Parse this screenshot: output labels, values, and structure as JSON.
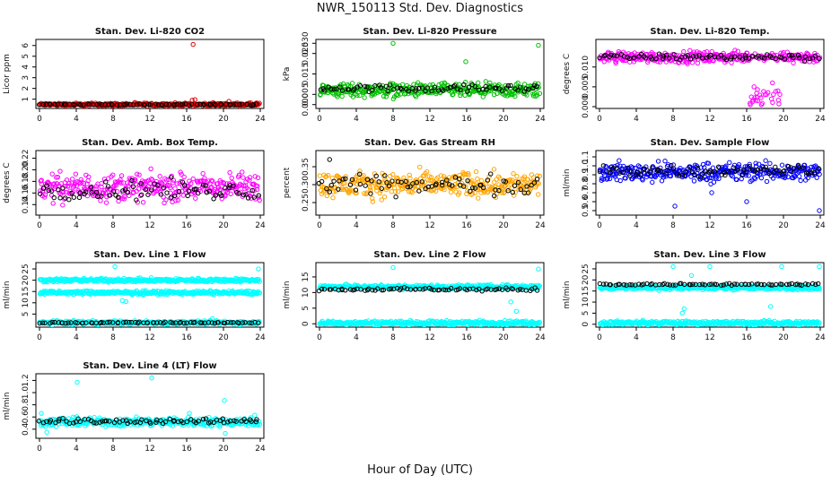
{
  "figure": {
    "title": "NWR_150113  Std. Dev. Diagnostics",
    "xlabel": "Hour of Day (UTC)"
  },
  "chart_data": [
    {
      "type": "scatter",
      "title": "Stan. Dev. Li-820 CO2",
      "ylabel": "Licor ppm",
      "xlim": [
        0,
        24
      ],
      "ylim": [
        0.3,
        6.4
      ],
      "xticks": [
        0,
        4,
        8,
        12,
        16,
        20,
        24
      ],
      "yticks": [
        1,
        2,
        3,
        4,
        5,
        6
      ],
      "series": [
        {
          "color": "#e00000",
          "base": 0.5,
          "noise": 0.12,
          "outliers": [
            [
              16.7,
              6.1
            ],
            [
              16.6,
              0.9
            ],
            [
              16.9,
              0.95
            ],
            [
              20.6,
              0.8
            ],
            [
              23.6,
              0.65
            ]
          ]
        },
        {
          "color": "#000000",
          "base": 0.5,
          "noise": 0.06,
          "sparse": true,
          "outliers": []
        }
      ]
    },
    {
      "type": "scatter",
      "title": "Stan. Dev. Li-820 Pressure",
      "ylabel": "kPa",
      "xlim": [
        0,
        24
      ],
      "ylim": [
        -0.001,
        0.031
      ],
      "xticks": [
        0,
        4,
        8,
        12,
        16,
        20,
        24
      ],
      "yticks": [
        0.0,
        0.005,
        0.015,
        0.025
      ],
      "ytick_labels": [
        "0.000",
        "0.005",
        "0.015",
        "0.025"
      ],
      "extra_ytick": {
        "value": 0.03,
        "label": "0.030"
      },
      "series": [
        {
          "color": "#00c000",
          "base": 0.007,
          "noise": 0.003,
          "outliers": [
            [
              8.0,
              0.03
            ],
            [
              23.8,
              0.029
            ],
            [
              15.9,
              0.021
            ]
          ]
        },
        {
          "color": "#000000",
          "base": 0.008,
          "noise": 0.0015,
          "sparse": true,
          "outliers": []
        }
      ]
    },
    {
      "type": "scatter",
      "title": "Stan. Dev. Li-820 Temp.",
      "ylabel": "degrees C",
      "xlim": [
        0,
        24
      ],
      "ylim": [
        0.0,
        0.0165
      ],
      "xticks": [
        0,
        4,
        8,
        12,
        16,
        20,
        24
      ],
      "yticks": [
        0.0,
        0.005,
        0.01
      ],
      "ytick_labels": [
        "0.000",
        "0.005",
        "0.010"
      ],
      "series": [
        {
          "color": "#ff00ff",
          "base": 0.0125,
          "noise": 0.0012,
          "outliers": [
            [
              16.4,
              0.0005
            ],
            [
              16.8,
              0.005
            ],
            [
              17.2,
              0.0015
            ],
            [
              18.0,
              0.003
            ],
            [
              18.8,
              0.006
            ],
            [
              19.4,
              0.004
            ],
            [
              17.6,
              0.0005
            ]
          ]
        },
        {
          "color": "#000000",
          "base": 0.0125,
          "noise": 0.0007,
          "sparse": true,
          "outliers": []
        }
      ]
    },
    {
      "type": "scatter",
      "title": "Stan. Dev. Amb. Box Temp.",
      "ylabel": "degrees C",
      "xlim": [
        0,
        24
      ],
      "ylim": [
        0.125,
        0.23
      ],
      "xticks": [
        0,
        4,
        8,
        12,
        16,
        20,
        24
      ],
      "yticks": [
        0.14,
        0.16,
        0.18,
        0.2,
        0.22
      ],
      "ytick_labels": [
        "0.14",
        "0.16",
        "0.18",
        "0.20",
        "0.22"
      ],
      "series": [
        {
          "color": "#ff00ff",
          "base": 0.17,
          "noise": 0.02,
          "outliers": []
        },
        {
          "color": "#000000",
          "base": 0.165,
          "noise": 0.015,
          "sparse": true,
          "outliers": []
        }
      ]
    },
    {
      "type": "scatter",
      "title": "Stan. Dev. Gas Stream RH",
      "ylabel": "percent",
      "xlim": [
        0,
        24
      ],
      "ylim": [
        0.22,
        0.39
      ],
      "xticks": [
        0,
        4,
        8,
        12,
        16,
        20,
        24
      ],
      "yticks": [
        0.25,
        0.3,
        0.35
      ],
      "ytick_labels": [
        "0.25",
        "0.30",
        "0.35"
      ],
      "series": [
        {
          "color": "#ffa500",
          "base": 0.3,
          "noise": 0.03,
          "outliers": []
        },
        {
          "color": "#000000",
          "base": 0.3,
          "noise": 0.022,
          "sparse": true,
          "outliers": [
            [
              1.1,
              0.37
            ]
          ]
        }
      ]
    },
    {
      "type": "scatter",
      "title": "Stan. Dev. Sample Flow",
      "ylabel": "ml/min",
      "xlim": [
        0,
        24
      ],
      "ylim": [
        0.47,
        1.15
      ],
      "xticks": [
        0,
        4,
        8,
        12,
        16,
        20,
        24
      ],
      "yticks": [
        0.5,
        0.6,
        0.7,
        0.8,
        0.9,
        1.0,
        1.1
      ],
      "ytick_labels": [
        "0.5",
        "0.6",
        "0.7",
        "0.8",
        "0.9",
        "1.0",
        "1.1"
      ],
      "series": [
        {
          "color": "#0000ff",
          "base": 0.93,
          "noise": 0.09,
          "outliers": [
            [
              8.2,
              0.55
            ],
            [
              16.0,
              0.6
            ],
            [
              23.9,
              0.5
            ],
            [
              12.2,
              0.7
            ]
          ]
        },
        {
          "color": "#000000",
          "base": 0.95,
          "noise": 0.06,
          "sparse": true,
          "outliers": []
        }
      ]
    },
    {
      "type": "scatter",
      "title": "Stan. Dev. Line 1 Flow",
      "ylabel": "ml/min",
      "xlim": [
        0,
        24
      ],
      "ylim": [
        0,
        27
      ],
      "xticks": [
        0,
        4,
        8,
        12,
        16,
        20,
        24
      ],
      "yticks": [
        5,
        10,
        15,
        20,
        25
      ],
      "ytick_labels": [
        "5",
        "10",
        "15",
        "20",
        "25"
      ],
      "series": [
        {
          "color": "#00ffff",
          "bands": [
            20,
            14.5,
            1.2
          ],
          "noise": 0.7,
          "outliers": [
            [
              8.2,
              26
            ],
            [
              23.8,
              25
            ],
            [
              9.0,
              11
            ],
            [
              9.4,
              10.5
            ],
            [
              18.8,
              3
            ]
          ]
        },
        {
          "color": "#000000",
          "bands": [
            1.2
          ],
          "noise": 0.25,
          "sparse": true,
          "outliers": []
        }
      ]
    },
    {
      "type": "scatter",
      "title": "Stan. Dev. Line 2 Flow",
      "ylabel": "ml/min",
      "xlim": [
        0,
        24
      ],
      "ylim": [
        -0.5,
        19
      ],
      "xticks": [
        0,
        4,
        8,
        12,
        16,
        20,
        24
      ],
      "yticks": [
        0,
        5,
        10,
        15
      ],
      "ytick_labels": [
        "0",
        "5",
        "10",
        "15"
      ],
      "series": [
        {
          "color": "#00ffff",
          "bands": [
            11.8,
            0.3
          ],
          "noise": 0.6,
          "outliers": [
            [
              8.0,
              18
            ],
            [
              23.8,
              17.5
            ],
            [
              21.4,
              4
            ],
            [
              20.8,
              7
            ]
          ]
        },
        {
          "color": "#000000",
          "bands": [
            11.0
          ],
          "noise": 0.4,
          "sparse": true,
          "outliers": []
        }
      ]
    },
    {
      "type": "scatter",
      "title": "Stan. Dev. Line 3 Flow",
      "ylabel": "ml/min",
      "xlim": [
        0,
        24
      ],
      "ylim": [
        -0.5,
        27
      ],
      "xticks": [
        0,
        4,
        8,
        12,
        16,
        20,
        24
      ],
      "yticks": [
        0,
        5,
        10,
        15,
        20,
        25
      ],
      "ytick_labels": [
        "0",
        "5",
        "10",
        "15",
        "20",
        "25"
      ],
      "series": [
        {
          "color": "#00ffff",
          "bands": [
            16.5,
            0.6
          ],
          "noise": 0.8,
          "outliers": [
            [
              8.0,
              26
            ],
            [
              12.0,
              26
            ],
            [
              19.8,
              26
            ],
            [
              23.9,
              26
            ],
            [
              9.2,
              7
            ],
            [
              9.0,
              5
            ],
            [
              18.6,
              8
            ],
            [
              10.0,
              22
            ]
          ]
        },
        {
          "color": "#000000",
          "bands": [
            18.0
          ],
          "noise": 0.4,
          "sparse": true,
          "outliers": []
        }
      ]
    },
    {
      "type": "scatter",
      "title": "Stan. Dev. Line 4 (LT) Flow",
      "ylabel": "ml/min",
      "xlim": [
        0,
        24
      ],
      "ylim": [
        0.28,
        1.28
      ],
      "xticks": [
        0,
        4,
        8,
        12,
        16,
        20,
        24
      ],
      "yticks": [
        0.4,
        0.6,
        0.8,
        1.0,
        1.2
      ],
      "ytick_labels": [
        "0.4",
        "0.6",
        "0.8",
        "1.0",
        "1.2"
      ],
      "series": [
        {
          "color": "#00ffff",
          "base": 0.52,
          "noise": 0.06,
          "outliers": [
            [
              4.1,
              1.17
            ],
            [
              12.2,
              1.24
            ],
            [
              20.1,
              0.87
            ],
            [
              0.2,
              0.66
            ],
            [
              16.3,
              0.66
            ],
            [
              23.4,
              0.63
            ],
            [
              0.8,
              0.35
            ],
            [
              20.2,
              0.33
            ]
          ]
        },
        {
          "color": "#000000",
          "base": 0.53,
          "noise": 0.04,
          "sparse": true,
          "outliers": []
        }
      ]
    }
  ]
}
